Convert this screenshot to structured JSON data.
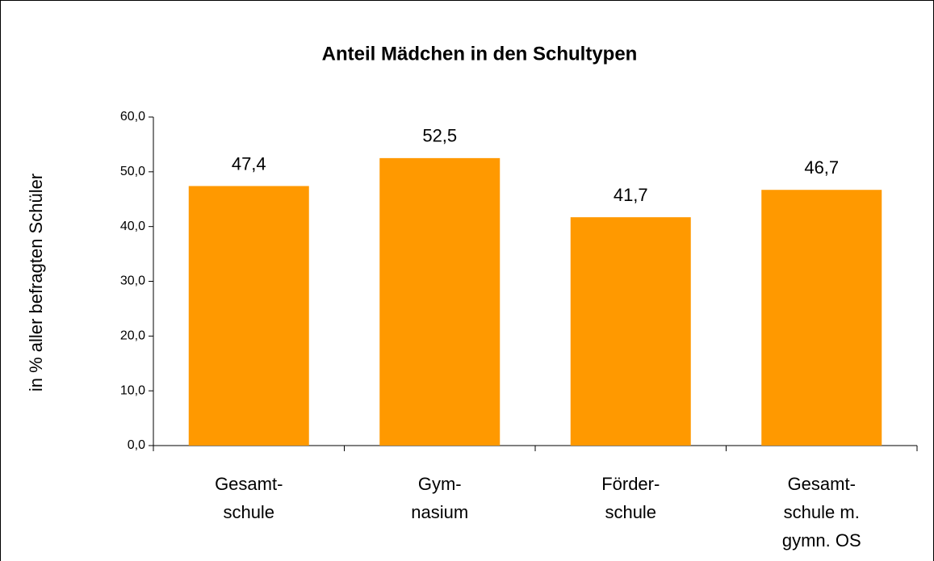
{
  "chart_data": {
    "type": "bar",
    "title": "Anteil Mädchen in den Schultypen",
    "y_label": "in % aller befragten Schüler",
    "categories": [
      "Gesamt-\nschule",
      "Gym-\nnasium",
      "Förder-\nschule",
      "Gesamt-\nschule m.\ngymn. OS"
    ],
    "values": [
      47.4,
      52.5,
      41.7,
      46.7
    ],
    "value_labels": [
      "47,4",
      "52,5",
      "41,7",
      "46,7"
    ],
    "color": "#ff9900",
    "ylim": [
      0,
      60
    ],
    "yticks": [
      {
        "value": 0,
        "label": "0,0"
      },
      {
        "value": 10,
        "label": "10,0"
      },
      {
        "value": 20,
        "label": "20,0"
      },
      {
        "value": 30,
        "label": "30,0"
      },
      {
        "value": 40,
        "label": "40,0"
      },
      {
        "value": 50,
        "label": "50,0"
      },
      {
        "value": 60,
        "label": "60,0"
      }
    ],
    "grid": false
  }
}
